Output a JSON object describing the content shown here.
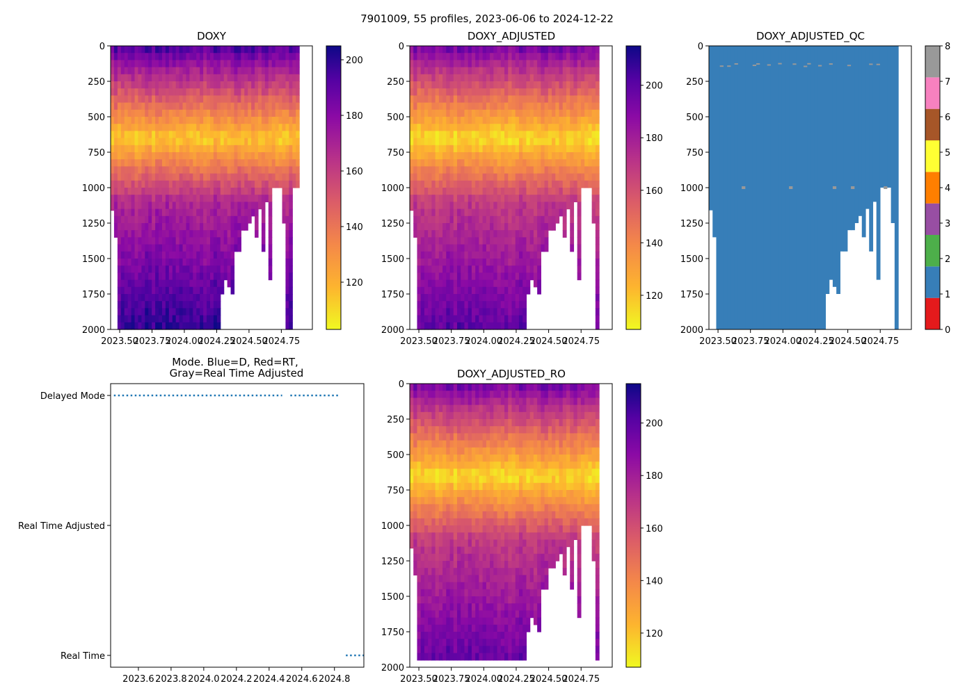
{
  "suptitle": "7901009, 55 profiles, 2023-06-06 to 2024-12-22",
  "chart_data": [
    {
      "type": "heatmap",
      "title": "DOXY",
      "x_ticks": [
        "2023.50",
        "2023.75",
        "2024.00",
        "2024.25",
        "2024.50",
        "2024.75"
      ],
      "y_ticks": [
        "0",
        "250",
        "500",
        "750",
        "1000",
        "1250",
        "1500",
        "1750",
        "2000"
      ],
      "ylim": [
        2000,
        0
      ],
      "xlim": [
        2023.43,
        2024.99
      ],
      "n_profiles": 55,
      "colormap": "plasma_r",
      "colorbar": {
        "range": [
          103,
          205
        ],
        "ticks": [
          "120",
          "140",
          "160",
          "180",
          "200"
        ]
      },
      "profile_max_depth": [
        1160,
        1350,
        2000,
        2000,
        2000,
        2000,
        2000,
        2000,
        2000,
        2000,
        2000,
        2000,
        2000,
        2000,
        2000,
        2000,
        2000,
        2000,
        2000,
        2000,
        2000,
        2000,
        2000,
        2000,
        2000,
        2000,
        2000,
        2000,
        2000,
        2000,
        2000,
        2000,
        1750,
        1650,
        1700,
        1750,
        1450,
        1450,
        1300,
        1300,
        1250,
        1200,
        1350,
        1150,
        1450,
        1100,
        1650,
        1000,
        1000,
        1000,
        1250,
        2000,
        2000,
        1000,
        1000
      ]
    },
    {
      "type": "heatmap",
      "title": "DOXY_ADJUSTED",
      "x_ticks": [
        "2023.50",
        "2023.75",
        "2024.00",
        "2024.25",
        "2024.50",
        "2024.75"
      ],
      "y_ticks": [
        "0",
        "250",
        "500",
        "750",
        "1000",
        "1250",
        "1500",
        "1750",
        "2000"
      ],
      "ylim": [
        2000,
        0
      ],
      "xlim": [
        2023.43,
        2024.99
      ],
      "n_profiles": 52,
      "colormap": "plasma_r",
      "colorbar": {
        "range": [
          107,
          215
        ],
        "ticks": [
          "120",
          "140",
          "160",
          "180",
          "200"
        ]
      }
    },
    {
      "type": "heatmap",
      "title": "DOXY_ADJUSTED_QC",
      "x_ticks": [
        "2023.50",
        "2023.75",
        "2024.00",
        "2024.25",
        "2024.50",
        "2024.75"
      ],
      "y_ticks": [
        "0",
        "250",
        "500",
        "750",
        "1000",
        "1250",
        "1500",
        "1750",
        "2000"
      ],
      "ylim": [
        2000,
        0
      ],
      "colorbar": {
        "range": [
          0,
          8
        ],
        "ticks": [
          "0",
          "1",
          "2",
          "3",
          "4",
          "5",
          "6",
          "7",
          "8"
        ],
        "colors": [
          "#e41a1c",
          "#377eb8",
          "#4daf4a",
          "#984ea3",
          "#ff7f00",
          "#ffff33",
          "#a65628",
          "#f781bf",
          "#999999"
        ]
      },
      "dominant_flag": 1,
      "flag8_depth_markers": [
        120,
        1000
      ]
    },
    {
      "type": "scatter",
      "title": "Mode. Blue=D, Red=RT,\nGray=Real Time Adjusted",
      "x_ticks": [
        "2023.6",
        "2023.8",
        "2024.0",
        "2024.2",
        "2024.4",
        "2024.6",
        "2024.8"
      ],
      "y_categories": [
        "Real Time",
        "Real Time Adjusted",
        "Delayed Mode"
      ],
      "xlim": [
        2023.43,
        2024.98
      ],
      "series": [
        {
          "values": [
            [
              2023.45,
              2
            ],
            [
              2024.48,
              2
            ]
          ],
          "color": "#1f77b4"
        },
        {
          "values": [
            [
              2024.53,
              2
            ],
            [
              2024.83,
              2
            ]
          ],
          "color": "#1f77b4"
        },
        {
          "values": [
            [
              2024.87,
              0
            ],
            [
              2024.98,
              0
            ]
          ],
          "color": "#1f77b4"
        }
      ]
    },
    {
      "type": "heatmap",
      "title": "DOXY_ADJUSTED_RO",
      "x_ticks": [
        "2023.50",
        "2023.75",
        "2024.00",
        "2024.25",
        "2024.50",
        "2024.75"
      ],
      "y_ticks": [
        "0",
        "250",
        "500",
        "750",
        "1000",
        "1250",
        "1500",
        "1750",
        "2000"
      ],
      "ylim": [
        2000,
        0
      ],
      "xlim": [
        2023.43,
        2024.99
      ],
      "n_profiles": 52,
      "colormap": "plasma_r",
      "colorbar": {
        "range": [
          107,
          215
        ],
        "ticks": [
          "120",
          "140",
          "160",
          "180",
          "200"
        ]
      }
    }
  ]
}
